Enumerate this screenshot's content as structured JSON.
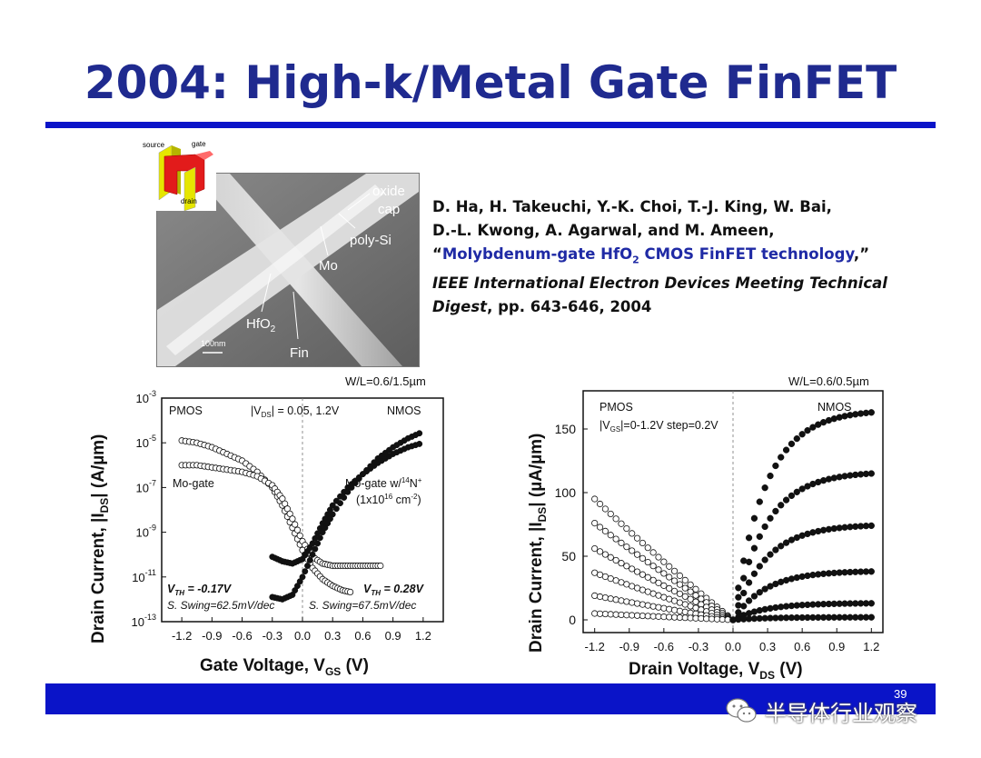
{
  "slide": {
    "title": "2004: High-k/Metal Gate FinFET",
    "page_number": "39",
    "watermark": "半导体行业观察"
  },
  "sem_image": {
    "labels": {
      "oxide_cap_1": "oxide",
      "oxide_cap_2": "cap",
      "poly_si": "poly-Si",
      "mo": "Mo",
      "hfo2": "HfO",
      "hfo2_sub": "2",
      "fin": "Fin",
      "scale": "100nm"
    },
    "inset_labels": {
      "source": "source",
      "gate": "gate",
      "drain": "drain"
    }
  },
  "reference": {
    "authors_line1": "D. Ha, H. Takeuchi, Y.-K. Choi, T.-J. King, W. Bai,",
    "authors_line2": "D.-L. Kwong, A. Agarwal, and M. Ameen,",
    "quote_open": "“",
    "paper_title_a": "Molybdenum-gate HfO",
    "paper_title_sub": "2",
    "paper_title_b": " CMOS FinFET technology",
    "quote_close": ",”",
    "journal_a": "IEEE International Electron Devices Meeting Technical",
    "journal_b": "Digest",
    "pages": ", pp. 643-646, 2004"
  },
  "chart_data": [
    {
      "type": "scatter",
      "corner_label": "W/L=0.6/1.5µm",
      "xlabel_main": "Gate Voltage, V",
      "xlabel_sub": "GS",
      "xlabel_unit": " (V)",
      "ylabel_main": "Drain Current, |I",
      "ylabel_sub": "DS",
      "ylabel_unit": "| (A/µm)",
      "x_ticks": [
        "-1.2",
        "-0.9",
        "-0.6",
        "-0.3",
        "0.0",
        "0.3",
        "0.6",
        "0.9",
        "1.2"
      ],
      "y_ticks": [
        {
          "base": "10",
          "exp": "-3"
        },
        {
          "base": "10",
          "exp": "-5"
        },
        {
          "base": "10",
          "exp": "-7"
        },
        {
          "base": "10",
          "exp": "-9"
        },
        {
          "base": "10",
          "exp": "-11"
        },
        {
          "base": "10",
          "exp": "-13"
        }
      ],
      "xlim": [
        -1.4,
        1.4
      ],
      "ylim_log10": [
        -13,
        -3
      ],
      "annotations": {
        "pmos": "PMOS",
        "nmos": "NMOS",
        "vds_a": "|V",
        "vds_sub": "DS",
        "vds_b": "| = 0.05, 1.2V",
        "mo_gate": "Mo-gate",
        "mo_gate_n_a": "Mo-gate w/",
        "mo_gate_n_sup": "14",
        "mo_gate_n_b": "N",
        "mo_gate_n_sup2": "+",
        "dose_a": "(1x10",
        "dose_sup": "16",
        "dose_b": " cm",
        "dose_sup2": "-2",
        "dose_c": ")",
        "vth_p_a": "V",
        "vth_p_sub": "TH",
        "vth_p_b": " = -0.17V",
        "vth_n_a": "V",
        "vth_n_sub": "TH",
        "vth_n_b": " = 0.28V",
        "swing_p": "S. Swing=62.5mV/dec",
        "swing_n": "S. Swing=67.5mV/dec"
      },
      "series": [
        {
          "marker": "open",
          "x": [
            -1.2,
            -1.05,
            -0.9,
            -0.75,
            -0.6,
            -0.45,
            -0.3,
            -0.2,
            -0.1,
            0.0,
            0.1,
            0.2,
            0.3,
            0.4,
            0.5
          ],
          "log_y": [
            -4.9,
            -5.0,
            -5.2,
            -5.5,
            -5.8,
            -6.3,
            -7.0,
            -7.8,
            -8.8,
            -9.8,
            -10.6,
            -11.1,
            -11.4,
            -11.6,
            -11.7
          ]
        },
        {
          "marker": "open",
          "x": [
            -1.2,
            -1.05,
            -0.9,
            -0.75,
            -0.6,
            -0.45,
            -0.3,
            -0.2,
            -0.1,
            0.0,
            0.1,
            0.2,
            0.3,
            0.4,
            0.5,
            0.6,
            0.7,
            0.8
          ],
          "log_y": [
            -6.0,
            -6.0,
            -6.1,
            -6.2,
            -6.3,
            -6.5,
            -6.9,
            -7.5,
            -8.4,
            -9.4,
            -10.1,
            -10.4,
            -10.5,
            -10.5,
            -10.5,
            -10.5,
            -10.5,
            -10.5
          ]
        },
        {
          "marker": "filled",
          "x": [
            -0.3,
            -0.2,
            -0.1,
            0.0,
            0.1,
            0.2,
            0.3,
            0.45,
            0.6,
            0.75,
            0.9,
            1.05,
            1.2
          ],
          "log_y": [
            -10.1,
            -10.3,
            -10.4,
            -10.2,
            -9.5,
            -8.6,
            -7.8,
            -7.0,
            -6.4,
            -5.9,
            -5.5,
            -5.2,
            -5.0
          ]
        },
        {
          "marker": "filled",
          "x": [
            -0.3,
            -0.2,
            -0.1,
            0.0,
            0.1,
            0.2,
            0.3,
            0.45,
            0.6,
            0.75,
            0.9,
            1.05,
            1.2
          ],
          "log_y": [
            -11.9,
            -12.0,
            -11.8,
            -11.0,
            -10.0,
            -9.0,
            -8.2,
            -7.2,
            -6.4,
            -5.7,
            -5.2,
            -4.8,
            -4.5
          ]
        }
      ]
    },
    {
      "type": "scatter",
      "corner_label": "W/L=0.6/0.5µm",
      "xlabel_main": "Drain Voltage, V",
      "xlabel_sub": "DS",
      "xlabel_unit": " (V)",
      "ylabel_main": "Drain Current, |I",
      "ylabel_sub": "DS",
      "ylabel_unit": "| (µA/µm)",
      "x_ticks": [
        "-1.2",
        "-0.9",
        "-0.6",
        "-0.3",
        "0.0",
        "0.3",
        "0.6",
        "0.9",
        "1.2"
      ],
      "y_ticks": [
        "150",
        "100",
        "50",
        "0"
      ],
      "xlim": [
        -1.3,
        1.3
      ],
      "ylim": [
        -10,
        180
      ],
      "annotations": {
        "pmos": "PMOS",
        "nmos": "NMOS",
        "vgs_a": "|V",
        "vgs_sub": "GS",
        "vgs_b": "|=0-1.2V step=0.2V"
      },
      "pmos_sat": [
        95,
        76,
        56,
        37,
        19,
        5
      ],
      "nmos_sat": [
        163,
        115,
        74,
        38,
        13,
        2
      ]
    }
  ]
}
